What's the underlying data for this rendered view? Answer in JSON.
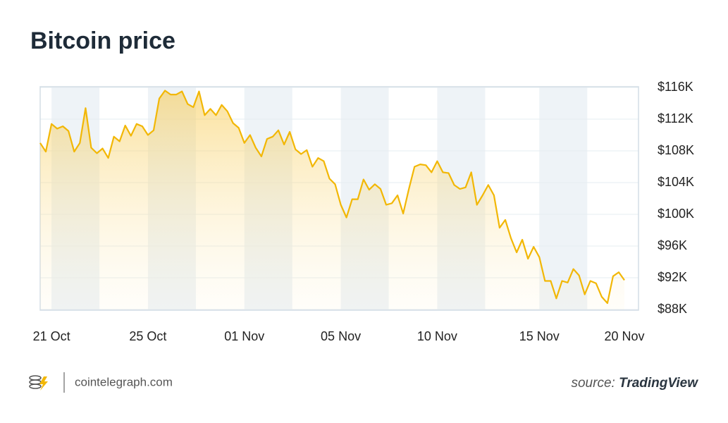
{
  "chart_data": {
    "type": "line",
    "title": "Bitcoin price",
    "color": "#f2b705",
    "categories": [
      null,
      null,
      "21 Oct",
      null,
      null,
      null,
      null,
      null,
      null,
      null,
      null,
      null,
      null,
      null,
      null,
      null,
      null,
      null,
      null,
      "25 Oct",
      null,
      null,
      null,
      null,
      null,
      null,
      null,
      null,
      null,
      null,
      null,
      null,
      null,
      null,
      null,
      null,
      "01 Nov",
      null,
      null,
      null,
      null,
      null,
      null,
      null,
      null,
      null,
      null,
      null,
      null,
      null,
      null,
      null,
      null,
      "05 Nov",
      null,
      null,
      null,
      null,
      null,
      null,
      null,
      null,
      null,
      null,
      null,
      null,
      null,
      null,
      null,
      null,
      "10 Nov",
      null,
      null,
      null,
      null,
      null,
      null,
      null,
      null,
      null,
      null,
      null,
      null,
      null,
      null,
      null,
      null,
      null,
      "15 Nov",
      null,
      null,
      null,
      null,
      null,
      null,
      null,
      null,
      null,
      null,
      null,
      null,
      null,
      null,
      "20 Nov"
    ],
    "values": [
      109000,
      107900,
      111400,
      110800,
      111100,
      110500,
      107900,
      109000,
      113400,
      108400,
      107700,
      108300,
      107100,
      109800,
      109200,
      111200,
      109900,
      111400,
      111100,
      110000,
      110600,
      114600,
      115600,
      115100,
      115100,
      115500,
      113900,
      113500,
      115500,
      112500,
      113300,
      112500,
      113800,
      113000,
      111500,
      110900,
      109000,
      110000,
      108400,
      107300,
      109500,
      109800,
      110600,
      108800,
      110400,
      108200,
      107600,
      108100,
      106000,
      107100,
      106700,
      104500,
      103800,
      101200,
      99600,
      101900,
      101900,
      104400,
      103100,
      103800,
      103200,
      101200,
      101400,
      102400,
      100100,
      103200,
      106000,
      106300,
      106200,
      105300,
      106700,
      105300,
      105200,
      103700,
      103200,
      103400,
      105300,
      101200,
      102400,
      103700,
      102400,
      98300,
      99300,
      97000,
      95200,
      96800,
      94400,
      95900,
      94600,
      91600,
      91600,
      89400,
      91600,
      91400,
      93100,
      92300,
      89900,
      91600,
      91300,
      89600,
      88800,
      92200,
      92700,
      91700
    ],
    "ylim": [
      88000,
      116000
    ],
    "yticks": [
      {
        "value": 88000,
        "label": "$88K"
      },
      {
        "value": 92000,
        "label": "$92K"
      },
      {
        "value": 96000,
        "label": "$96K"
      },
      {
        "value": 100000,
        "label": "$100K"
      },
      {
        "value": 104000,
        "label": "$104K"
      },
      {
        "value": 108000,
        "label": "$108K"
      },
      {
        "value": 112000,
        "label": "$112K"
      },
      {
        "value": 116000,
        "label": "$116K"
      }
    ],
    "grid": true
  },
  "footer": {
    "site": "cointelegraph.com",
    "source_label": "source:",
    "source": "TradingView"
  }
}
